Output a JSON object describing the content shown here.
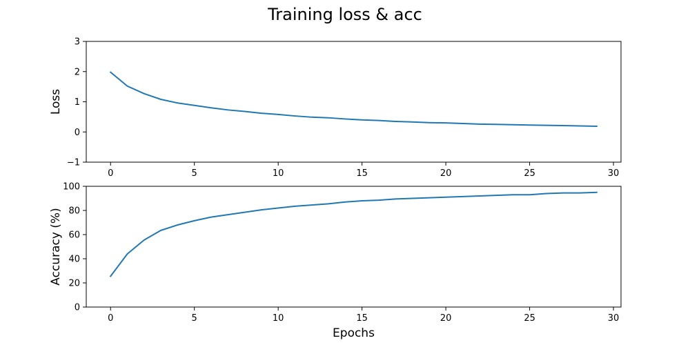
{
  "chart_data": {
    "title": "Training loss & acc",
    "colors": {
      "series": "#1f77b4"
    },
    "subplots": [
      {
        "type": "line",
        "xlabel": "",
        "ylabel": "Loss",
        "xlim": [
          -1.45,
          30.45
        ],
        "ylim": [
          -1,
          3
        ],
        "xticks": [
          0,
          5,
          10,
          15,
          20,
          25,
          30
        ],
        "yticks": [
          -1,
          0,
          1,
          2,
          3
        ],
        "ytick_labels": [
          "−1",
          "0",
          "1",
          "2",
          "3"
        ],
        "grid": false,
        "x": [
          0,
          1,
          2,
          3,
          4,
          5,
          6,
          7,
          8,
          9,
          10,
          11,
          12,
          13,
          14,
          15,
          16,
          17,
          18,
          19,
          20,
          21,
          22,
          23,
          24,
          25,
          26,
          27,
          28,
          29
        ],
        "series": [
          {
            "values": [
              1.98,
              1.52,
              1.27,
              1.08,
              0.96,
              0.88,
              0.8,
              0.73,
              0.68,
              0.62,
              0.58,
              0.53,
              0.49,
              0.47,
              0.43,
              0.4,
              0.38,
              0.35,
              0.33,
              0.31,
              0.3,
              0.28,
              0.26,
              0.25,
              0.24,
              0.23,
              0.22,
              0.21,
              0.2,
              0.19
            ]
          }
        ]
      },
      {
        "type": "line",
        "xlabel": "Epochs",
        "ylabel": "Accuracy (%)",
        "xlim": [
          -1.45,
          30.45
        ],
        "ylim": [
          0,
          100
        ],
        "xticks": [
          0,
          5,
          10,
          15,
          20,
          25,
          30
        ],
        "yticks": [
          0,
          20,
          40,
          60,
          80,
          100
        ],
        "ytick_labels": [
          "0",
          "20",
          "40",
          "60",
          "80",
          "100"
        ],
        "grid": false,
        "x": [
          0,
          1,
          2,
          3,
          4,
          5,
          6,
          7,
          8,
          9,
          10,
          11,
          12,
          13,
          14,
          15,
          16,
          17,
          18,
          19,
          20,
          21,
          22,
          23,
          24,
          25,
          26,
          27,
          28,
          29
        ],
        "series": [
          {
            "values": [
              25.5,
              44.0,
              55.5,
              63.5,
              68.0,
              71.5,
              74.5,
              76.5,
              78.5,
              80.5,
              82.0,
              83.5,
              84.5,
              85.5,
              87.0,
              88.0,
              88.5,
              89.5,
              90.0,
              90.5,
              91.0,
              91.5,
              92.0,
              92.5,
              93.0,
              93.0,
              94.0,
              94.5,
              94.5,
              95.0
            ]
          }
        ]
      }
    ]
  }
}
